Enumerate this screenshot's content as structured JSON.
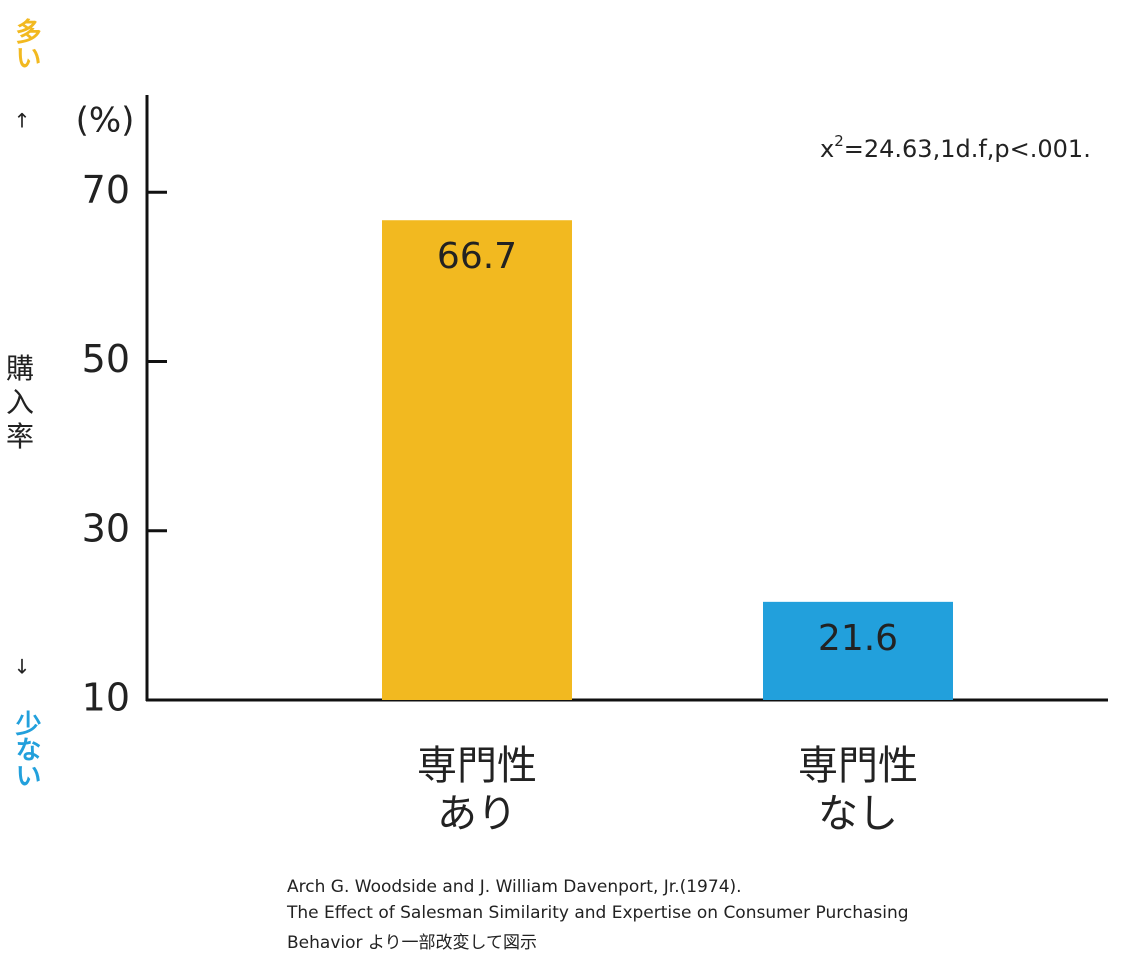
{
  "chart_data": {
    "type": "bar",
    "unit_label": "(%)",
    "y_label": "購入率",
    "y_high_label": "多い",
    "y_low_label": "少ない",
    "up_arrow": "↑",
    "down_arrow": "↓",
    "annotation": {
      "base": "x",
      "sup": "2",
      "rest": "=24.63,1d.f,p<.001."
    },
    "categories": [
      "専門性\nあり",
      "専門性\nなし"
    ],
    "values": [
      66.7,
      21.6
    ],
    "colors": [
      "#f2b920",
      "#22a0dc"
    ],
    "ylim": [
      10,
      81.5
    ],
    "yticks": [
      10,
      30,
      50,
      70
    ],
    "source": [
      "Arch G. Woodside and J. William Davenport, Jr.(1974).",
      "The Effect of Salesman Similarity and Expertise on Consumer Purchasing",
      "Behavior より一部改変して図示"
    ]
  }
}
